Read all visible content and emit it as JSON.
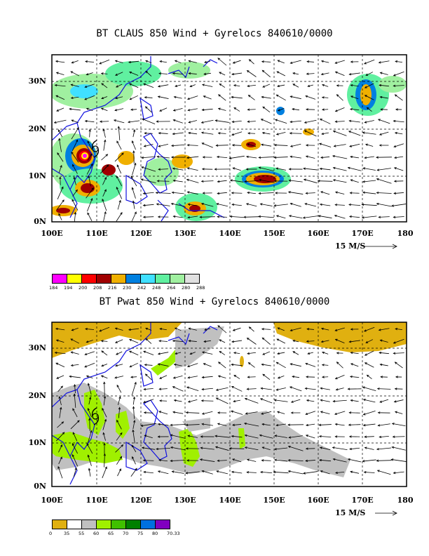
{
  "top": {
    "title": "BT CLAUS 850 Wind + Gyrelocs 840610/0000",
    "colorbar": {
      "colors": [
        "#ff00ff",
        "#ffff00",
        "#ff0000",
        "#a00000",
        "#f0b000",
        "#0080e0",
        "#40e0ff",
        "#60f0a0",
        "#a0f0a0",
        "#e0e0e0"
      ],
      "labels": [
        "184",
        "194",
        "200",
        "208",
        "216",
        "230",
        "242",
        "248",
        "264",
        "280",
        "288"
      ]
    }
  },
  "bottom": {
    "title": "BT Pwat 850 Wind + Gyrelocs 840610/0000",
    "colorbar": {
      "colors": [
        "#e0b010",
        "#ffffff",
        "#c0c0c0",
        "#a0f000",
        "#40c000",
        "#008000",
        "#0070e0",
        "#8000c0"
      ],
      "labels": [
        "0",
        "35",
        "55",
        "60",
        "65",
        "70",
        "75",
        "80",
        "70.33"
      ]
    }
  },
  "lat_labels": [
    "30N",
    "20N",
    "10N",
    "0N"
  ],
  "lon_labels": [
    "100E",
    "110E",
    "120E",
    "130E",
    "140E",
    "150E",
    "160E",
    "170E",
    "180"
  ],
  "scale_label": "15 M/S",
  "colors": {
    "coast": "#1010e0"
  }
}
